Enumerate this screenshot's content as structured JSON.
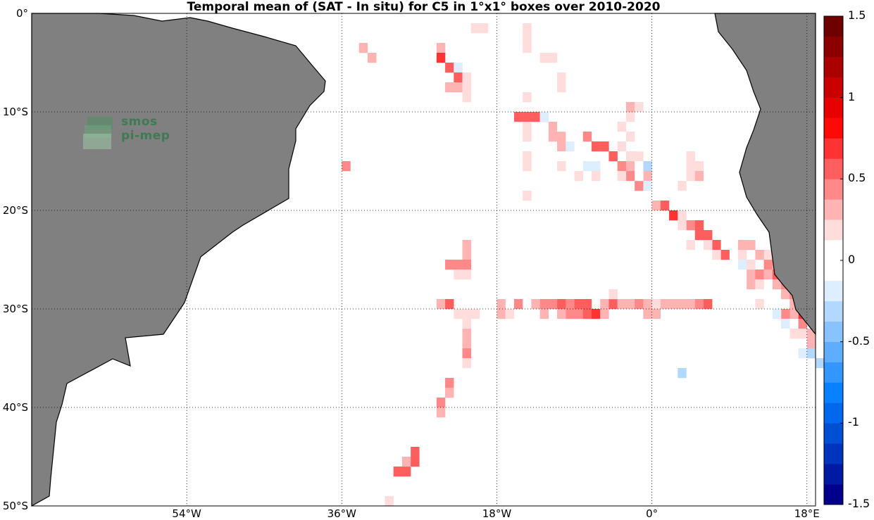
{
  "title": "Temporal mean of (SAT - In situ) for C5 in 1°x1° boxes over 2010-2020",
  "logo": {
    "line1": "smos",
    "line2": "pi-mep"
  },
  "map": {
    "lon_range": [
      -72,
      19
    ],
    "lat_range": [
      -50,
      0
    ],
    "land_color": "#808080",
    "ocean_color": "#ffffff",
    "grid_style": "dotted"
  },
  "lat_labels": [
    {
      "lat": 0,
      "text": "0°"
    },
    {
      "lat": -10,
      "text": "10°S"
    },
    {
      "lat": -20,
      "text": "20°S"
    },
    {
      "lat": -30,
      "text": "30°S"
    },
    {
      "lat": -40,
      "text": "40°S"
    },
    {
      "lat": -50,
      "text": "50°S"
    }
  ],
  "lon_labels": [
    {
      "lon": -54,
      "text": "54°W"
    },
    {
      "lon": -36,
      "text": "36°W"
    },
    {
      "lon": -18,
      "text": "18°W"
    },
    {
      "lon": 0,
      "text": "0°"
    },
    {
      "lon": 18,
      "text": "18°E"
    }
  ],
  "colorbar": {
    "range": [
      -1.5,
      1.5
    ],
    "levels": 24,
    "labels": [
      "1.5",
      "1",
      "0.5",
      "0",
      "-0.5",
      "-1",
      "-1.5"
    ],
    "label_values": [
      1.5,
      1,
      0.5,
      0,
      -0.5,
      -1,
      -1.5
    ]
  },
  "chart_data": {
    "type": "heatmap",
    "title": "Temporal mean of (SAT - In situ) for C5 in 1°x1° boxes over 2010-2020",
    "cell_size_deg": 1,
    "value_range": [
      -1.5,
      1.5
    ],
    "cells": [
      [
        -34,
        -3,
        0.25
      ],
      [
        -33,
        -4,
        0.3
      ],
      [
        -36,
        -15,
        0.4
      ],
      [
        -34,
        -20,
        -0.1
      ],
      [
        -34,
        -22,
        -0.1
      ],
      [
        -29,
        -46,
        0.5
      ],
      [
        -30,
        -46,
        0.5
      ],
      [
        -29,
        -45,
        0.3
      ],
      [
        -28,
        -45,
        0.5
      ],
      [
        -28,
        -44,
        0.5
      ],
      [
        -31,
        -49,
        0.2
      ],
      [
        -30,
        -48,
        -0.1
      ],
      [
        -25,
        -3,
        0.25
      ],
      [
        -25,
        -4,
        0.7
      ],
      [
        -24,
        -5,
        0.6
      ],
      [
        -23,
        -5,
        -0.15
      ],
      [
        -23,
        -6,
        0.55
      ],
      [
        -24,
        -7,
        0.25
      ],
      [
        -23,
        -7,
        0.25
      ],
      [
        -22,
        -6,
        0.2
      ],
      [
        -22,
        -7,
        0.2
      ],
      [
        -22,
        -8,
        0.2
      ],
      [
        -21,
        -1,
        0.2
      ],
      [
        -20,
        -1,
        0.2
      ],
      [
        -19,
        -1,
        -0.1
      ],
      [
        -15,
        -1,
        0.2
      ],
      [
        -15,
        -2,
        0.2
      ],
      [
        -15,
        -3,
        0.2
      ],
      [
        -13,
        -4,
        0.15
      ],
      [
        -12,
        -4,
        0.2
      ],
      [
        -14,
        -5,
        0.1
      ],
      [
        -15,
        -8,
        0.2
      ],
      [
        -11,
        -6,
        0.2
      ],
      [
        -11,
        -7,
        0.2
      ],
      [
        -15,
        -10,
        0.5
      ],
      [
        -14,
        -10,
        0.5
      ],
      [
        -13,
        -10,
        0.6
      ],
      [
        -16,
        -10,
        0.5
      ],
      [
        -12,
        -11,
        0.3
      ],
      [
        -11,
        -12,
        0.3
      ],
      [
        -11,
        -13,
        0.3
      ],
      [
        -12,
        -12,
        0.35
      ],
      [
        -15,
        -11,
        0.2
      ],
      [
        -15,
        -12,
        0.2
      ],
      [
        -15,
        -14,
        0.2
      ],
      [
        -15,
        -15,
        0.2
      ],
      [
        -15,
        -18,
        0.2
      ],
      [
        -13,
        -9,
        -0.1
      ],
      [
        -13,
        -10,
        -0.2
      ],
      [
        -12,
        -9,
        -0.1
      ],
      [
        -10,
        -10,
        -0.1
      ],
      [
        -11,
        -11,
        -0.1
      ],
      [
        -12,
        -14,
        -0.1
      ],
      [
        -13,
        -14,
        -0.1
      ],
      [
        -11,
        -14,
        -0.1
      ],
      [
        -10,
        -12,
        -0.1
      ],
      [
        -10,
        -13,
        -0.2
      ],
      [
        -9,
        -13,
        -0.1
      ],
      [
        -9,
        -14,
        -0.1
      ],
      [
        -8,
        -14,
        -0.1
      ],
      [
        -9,
        -15,
        -0.1
      ],
      [
        -8,
        -15,
        -0.2
      ],
      [
        -7,
        -15,
        -0.15
      ],
      [
        -11,
        -15,
        0.15
      ],
      [
        -9,
        -16,
        0.2
      ],
      [
        -7,
        -16,
        0.2
      ],
      [
        -6,
        -17,
        -0.1
      ],
      [
        -6,
        -18,
        -0.1
      ],
      [
        -8,
        -12,
        0.4
      ],
      [
        -7,
        -13,
        0.5
      ],
      [
        -6,
        -13,
        0.5
      ],
      [
        -5,
        -14,
        0.5
      ],
      [
        -4,
        -15,
        0.4
      ],
      [
        -3,
        -15,
        0.3
      ],
      [
        -3,
        -16,
        0.4
      ],
      [
        -2,
        -17,
        0.4
      ],
      [
        -1,
        -16,
        0.3
      ],
      [
        -4,
        -16,
        0.2
      ],
      [
        -3,
        -14,
        0.2
      ],
      [
        -4,
        -13,
        0.2
      ],
      [
        -2,
        -14,
        0.2
      ],
      [
        -2,
        -15,
        -0.1
      ],
      [
        -1,
        -15,
        -0.3
      ],
      [
        -2,
        -16,
        -0.1
      ],
      [
        -1,
        -17,
        -0.2
      ],
      [
        -1,
        -18,
        -0.1
      ],
      [
        0,
        -18,
        -0.1
      ],
      [
        0,
        -17,
        -0.1
      ],
      [
        0,
        -19,
        0.3
      ],
      [
        1,
        -19,
        0.5
      ],
      [
        2,
        -20,
        0.7
      ],
      [
        3,
        -20,
        0.2
      ],
      [
        4,
        -21,
        0.4
      ],
      [
        5,
        -21,
        0.5
      ],
      [
        5,
        -22,
        0.5
      ],
      [
        6,
        -22,
        0.6
      ],
      [
        7,
        -23,
        0.5
      ],
      [
        8,
        -24,
        0.5
      ],
      [
        7,
        -24,
        0.2
      ],
      [
        6,
        -23,
        0.2
      ],
      [
        4,
        -23,
        0.2
      ],
      [
        3,
        -21,
        0.2
      ],
      [
        8,
        -20,
        -0.1
      ],
      [
        9,
        -20,
        -0.1
      ],
      [
        7,
        -21,
        -0.1
      ],
      [
        10,
        -20,
        -0.1
      ],
      [
        10,
        -21,
        -0.1
      ],
      [
        3,
        -17,
        0.2
      ],
      [
        4,
        -16,
        0.2
      ],
      [
        4,
        -15,
        0.2
      ],
      [
        4,
        -14,
        0.2
      ],
      [
        5,
        -15,
        0.2
      ],
      [
        5,
        -16,
        0.3
      ],
      [
        6,
        -16,
        -0.1
      ],
      [
        6,
        -17,
        -0.1
      ],
      [
        7,
        -18,
        -0.1
      ],
      [
        7,
        -19,
        -0.1
      ],
      [
        6,
        -20,
        -0.1
      ],
      [
        2,
        -14,
        -0.1
      ],
      [
        -1,
        -12,
        -0.1
      ],
      [
        -2,
        -12,
        -0.1
      ],
      [
        -2,
        -13,
        -0.1
      ],
      [
        -3,
        -10,
        0.2
      ],
      [
        -3,
        -9,
        0.3
      ],
      [
        -2,
        -9,
        0.2
      ],
      [
        -4,
        -11,
        0.2
      ],
      [
        -3,
        -12,
        0.2
      ],
      [
        6,
        -13,
        -0.1
      ],
      [
        7,
        -13,
        -0.1
      ],
      [
        7,
        -14,
        -0.1
      ],
      [
        8,
        -14,
        -0.1
      ],
      [
        8,
        -15,
        -0.1
      ],
      [
        8,
        -16,
        -0.1
      ],
      [
        8,
        -18,
        -0.1
      ],
      [
        10,
        -23,
        0.35
      ],
      [
        10,
        -24,
        0.2
      ],
      [
        11,
        -25,
        0.2
      ],
      [
        11,
        -26,
        0.3
      ],
      [
        11,
        -27,
        0.3
      ],
      [
        12,
        -26,
        0.4
      ],
      [
        12,
        -27,
        0.2
      ],
      [
        13,
        -25,
        0.4
      ],
      [
        13,
        -26,
        0.3
      ],
      [
        14,
        -26,
        0.5
      ],
      [
        14,
        -27,
        0.3
      ],
      [
        15,
        -27,
        0.4
      ],
      [
        15,
        -28,
        0.3
      ],
      [
        16,
        -28,
        0.4
      ],
      [
        16,
        -29,
        0.3
      ],
      [
        17,
        -29,
        0.6
      ],
      [
        17,
        -28,
        0.7
      ],
      [
        17,
        -30,
        0.7
      ],
      [
        17,
        -31,
        0.4
      ],
      [
        18,
        -32,
        0.3
      ],
      [
        18,
        -33,
        0.3
      ],
      [
        17,
        -32,
        0.2
      ],
      [
        16,
        -32,
        0.2
      ],
      [
        16,
        -30,
        0.3
      ],
      [
        15,
        -30,
        0.4
      ],
      [
        15,
        -31,
        -0.2
      ],
      [
        15,
        -32,
        -0.1
      ],
      [
        11,
        -23,
        0.3
      ],
      [
        10,
        -25,
        -0.2
      ],
      [
        11,
        -25,
        0.2
      ],
      [
        13,
        -24,
        0.2
      ],
      [
        14,
        -25,
        0.3
      ],
      [
        12,
        -24,
        0.3
      ],
      [
        12,
        -29,
        0.2
      ],
      [
        13,
        -30,
        -0.1
      ],
      [
        14,
        -30,
        -0.2
      ],
      [
        11,
        -30,
        -0.1
      ],
      [
        12,
        -31,
        -0.1
      ],
      [
        13,
        -31,
        -0.1
      ],
      [
        10,
        -30,
        -0.1
      ],
      [
        17,
        -34,
        -0.2
      ],
      [
        18,
        -34,
        -0.3
      ],
      [
        19,
        -34,
        -0.1
      ],
      [
        19,
        -35,
        -0.3
      ],
      [
        17,
        -35,
        -0.1
      ],
      [
        14,
        -36,
        -0.1
      ],
      [
        13,
        -36,
        -0.1
      ],
      [
        12,
        -36,
        -0.1
      ],
      [
        12,
        -37,
        -0.1
      ],
      [
        3,
        -36,
        -0.3
      ],
      [
        4,
        -38,
        -0.1
      ],
      [
        4,
        -39,
        -0.1
      ],
      [
        4,
        -40,
        -0.1
      ],
      [
        6,
        -40,
        -0.1
      ],
      [
        -40,
        -29,
        -0.1
      ],
      [
        -37,
        -30,
        -0.1
      ],
      [
        -36,
        -30,
        -0.1
      ],
      [
        -35,
        -30,
        -0.1
      ],
      [
        -31,
        -29,
        -0.1
      ],
      [
        -30,
        -29,
        -0.1
      ],
      [
        -29,
        -29,
        -0.1
      ],
      [
        -27,
        -29,
        -0.1
      ],
      [
        -27,
        -30,
        -0.1
      ],
      [
        -25,
        -29,
        0.3
      ],
      [
        -24,
        -29,
        0.5
      ],
      [
        -23,
        -30,
        0.2
      ],
      [
        -22,
        -30,
        0.2
      ],
      [
        -21,
        -30,
        0.2
      ],
      [
        -18,
        -29,
        0.3
      ],
      [
        -18,
        -30,
        0.3
      ],
      [
        -17,
        -30,
        0.2
      ],
      [
        -16,
        -29,
        0.4
      ],
      [
        -14,
        -29,
        0.3
      ],
      [
        -13,
        -29,
        0.4
      ],
      [
        -12,
        -29,
        0.4
      ],
      [
        -11,
        -29,
        0.5
      ],
      [
        -10,
        -29,
        0.4
      ],
      [
        -10,
        -30,
        0.4
      ],
      [
        -9,
        -29,
        0.5
      ],
      [
        -9,
        -30,
        0.4
      ],
      [
        -8,
        -30,
        0.6
      ],
      [
        -7,
        -30,
        0.7
      ],
      [
        -6,
        -29,
        0.3
      ],
      [
        -5,
        -29,
        0.5
      ],
      [
        -4,
        -29,
        0.3
      ],
      [
        -3,
        -29,
        0.3
      ],
      [
        -2,
        -29,
        0.4
      ],
      [
        -1,
        -30,
        0.3
      ],
      [
        0,
        -29,
        0.2
      ],
      [
        0,
        -30,
        0.3
      ],
      [
        -1,
        -29,
        0.25
      ],
      [
        1,
        -29,
        0.3
      ],
      [
        2,
        -29,
        0.3
      ],
      [
        3,
        -29,
        0.3
      ],
      [
        4,
        -29,
        0.3
      ],
      [
        5,
        -29,
        0.4
      ],
      [
        6,
        -29,
        0.5
      ],
      [
        -5,
        -28,
        0.2
      ],
      [
        -8,
        -29,
        0.5
      ],
      [
        -6,
        -30,
        0.3
      ],
      [
        -11,
        -30,
        0.3
      ],
      [
        -13,
        -30,
        0.3
      ],
      [
        -22,
        -23,
        0.3
      ],
      [
        -22,
        -24,
        0.3
      ],
      [
        -22,
        -25,
        0.4
      ],
      [
        -23,
        -25,
        0.4
      ],
      [
        -24,
        -25,
        0.4
      ],
      [
        -23,
        -26,
        0.2
      ],
      [
        -22,
        -26,
        0.2
      ],
      [
        -22,
        -32,
        0.3
      ],
      [
        -22,
        -33,
        0.3
      ],
      [
        -22,
        -34,
        0.4
      ],
      [
        -22,
        -35,
        0.2
      ],
      [
        -22,
        -31,
        0.2
      ],
      [
        -24,
        -37,
        0.4
      ],
      [
        -24,
        -38,
        0.3
      ],
      [
        -25,
        -39,
        0.4
      ],
      [
        -25,
        -40,
        0.3
      ]
    ]
  }
}
